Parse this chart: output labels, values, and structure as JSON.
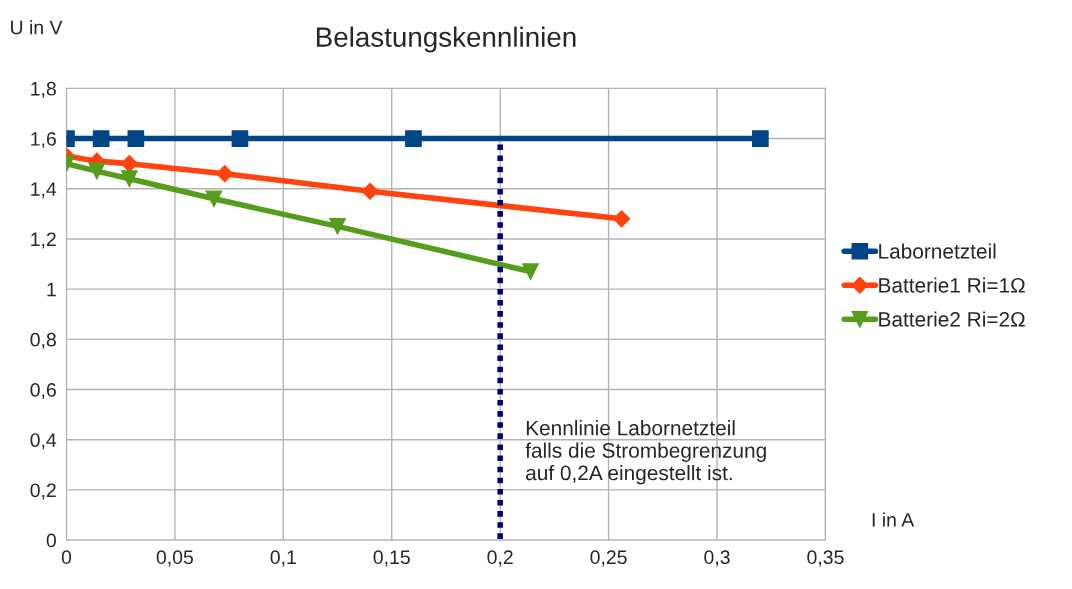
{
  "chart_data": {
    "type": "line",
    "title": "Belastungskennlinien",
    "xlabel": "I in A",
    "ylabel": "U in V",
    "xlim": [
      0,
      0.35
    ],
    "xticks": [
      {
        "value": 0,
        "label": "0"
      },
      {
        "value": 0.05,
        "label": "0,05"
      },
      {
        "value": 0.1,
        "label": "0,1"
      },
      {
        "value": 0.15,
        "label": "0,15"
      },
      {
        "value": 0.2,
        "label": "0,2"
      },
      {
        "value": 0.25,
        "label": "0,25"
      },
      {
        "value": 0.3,
        "label": "0,3"
      },
      {
        "value": 0.35,
        "label": "0,35"
      }
    ],
    "ylim": [
      0,
      1.8
    ],
    "yticks": [
      {
        "value": 0,
        "label": "0"
      },
      {
        "value": 0.2,
        "label": "0,2"
      },
      {
        "value": 0.4,
        "label": "0,4"
      },
      {
        "value": 0.6,
        "label": "0,6"
      },
      {
        "value": 0.8,
        "label": "0,8"
      },
      {
        "value": 1,
        "label": "1"
      },
      {
        "value": 1.2,
        "label": "1,2"
      },
      {
        "value": 1.4,
        "label": "1,4"
      },
      {
        "value": 1.6,
        "label": "1,6"
      },
      {
        "value": 1.8,
        "label": "1,8"
      }
    ],
    "grid": true,
    "legend": "right",
    "series": [
      {
        "name": "Labornetzteil",
        "color": "#004586",
        "marker": "square",
        "x": [
          0,
          0.016,
          0.032,
          0.08,
          0.16,
          0.32
        ],
        "values": [
          1.6,
          1.6,
          1.6,
          1.6,
          1.6,
          1.6
        ]
      },
      {
        "name": "Batterie1 Ri=1Ω",
        "color": "#ff420e",
        "marker": "diamond",
        "x": [
          0,
          0.014,
          0.029,
          0.073,
          0.14,
          0.256
        ],
        "values": [
          1.53,
          1.51,
          1.5,
          1.46,
          1.39,
          1.28
        ]
      },
      {
        "name": "Batterie2 Ri=2Ω",
        "color": "#579d1c",
        "marker": "triangle",
        "x": [
          0,
          0.014,
          0.029,
          0.068,
          0.125,
          0.214
        ],
        "values": [
          1.5,
          1.47,
          1.44,
          1.36,
          1.25,
          1.07
        ]
      },
      {
        "color": "#000080",
        "marker": "none",
        "line_style": "dotted",
        "x": [
          0.2,
          0.2
        ],
        "values": [
          0,
          1.6
        ]
      }
    ],
    "annotations": [
      {
        "text": "Kennlinie Labornetzteil\nfalls die Strombegrenzung\nauf 0,2A eingestellt ist.",
        "x": 0.2,
        "y": 0.35
      }
    ]
  }
}
